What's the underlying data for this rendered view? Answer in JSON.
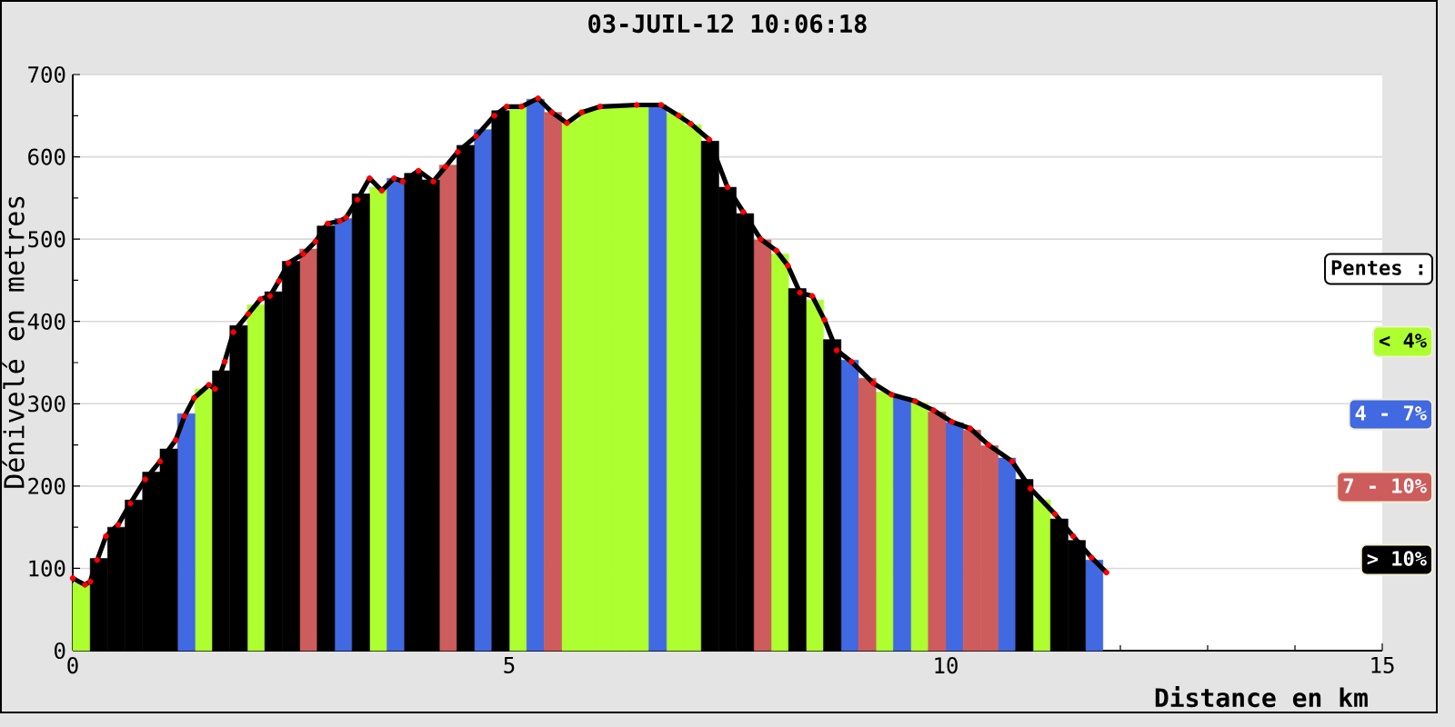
{
  "chart_data": {
    "type": "bar",
    "title": "03-JUIL-12 10:06:18",
    "xlabel": "Distance en km",
    "ylabel": "Dénivelé en metres",
    "legend_title": "Pentes :",
    "series": [
      {
        "name": "< 4%",
        "color": "#adff2f",
        "x": [
          0.1,
          1.5,
          2.1,
          3.5,
          5.1,
          5.7,
          5.9,
          6.1,
          6.3,
          6.5,
          6.9,
          7.1,
          8.1,
          8.5,
          9.3,
          9.7,
          11.1
        ],
        "values": [
          82,
          318,
          420,
          563,
          661,
          644,
          657,
          661,
          662,
          663,
          653,
          639,
          482,
          426,
          314,
          301,
          183
        ]
      },
      {
        "name": "4 - 7%",
        "color": "#4169e1",
        "x": [
          1.3,
          3.1,
          3.7,
          4.7,
          5.3,
          6.7,
          8.9,
          9.5,
          10.1,
          10.7,
          11.7
        ],
        "values": [
          288,
          525,
          574,
          633,
          670,
          663,
          353,
          308,
          277,
          234,
          110
        ]
      },
      {
        "name": "7 - 10%",
        "color": "#cd5c5c",
        "x": [
          2.7,
          4.3,
          5.5,
          7.9,
          9.1,
          9.9,
          10.3,
          10.5
        ],
        "values": [
          488,
          590,
          654,
          499,
          331,
          290,
          268,
          249
        ]
      },
      {
        "name": "> 10%",
        "color": "#000000",
        "x": [
          0.3,
          0.5,
          0.7,
          0.9,
          1.1,
          1.7,
          1.9,
          2.3,
          2.5,
          2.9,
          3.3,
          3.9,
          4.1,
          4.5,
          4.9,
          7.3,
          7.5,
          7.7,
          8.3,
          8.7,
          10.9,
          11.3,
          11.5
        ],
        "values": [
          112,
          150,
          183,
          217,
          245,
          340,
          395,
          436,
          473,
          516,
          555,
          580,
          572,
          614,
          656,
          619,
          563,
          531,
          440,
          378,
          208,
          160,
          134
        ]
      },
      {
        "type": "line",
        "color": "#ff0000",
        "x": [
          0,
          0.14,
          0.2,
          0.28,
          0.38,
          0.52,
          0.66,
          0.83,
          1.0,
          1.18,
          1.28,
          1.39,
          1.56,
          1.63,
          1.74,
          1.84,
          2.01,
          2.15,
          2.26,
          2.36,
          2.47,
          2.64,
          2.78,
          2.92,
          3.06,
          3.13,
          3.26,
          3.4,
          3.54,
          3.68,
          3.78,
          3.96,
          4.13,
          4.27,
          4.41,
          4.62,
          4.83,
          4.97,
          5.14,
          5.33,
          5.49,
          5.66,
          5.83,
          6.04,
          6.46,
          6.74,
          6.94,
          7.08,
          7.29,
          7.5,
          7.68,
          7.88,
          8.06,
          8.19,
          8.33,
          8.47,
          8.61,
          8.75,
          8.92,
          9.17,
          9.38,
          9.65,
          9.86,
          10.07,
          10.28,
          10.49,
          10.76,
          10.97,
          11.25,
          11.46,
          11.67,
          11.84
        ],
        "values": [
          88,
          80,
          84,
          110,
          139,
          153,
          179,
          208,
          230,
          256,
          285,
          307,
          323,
          318,
          351,
          387,
          409,
          427,
          431,
          449,
          471,
          482,
          497,
          519,
          522,
          526,
          548,
          574,
          559,
          574,
          570,
          583,
          570,
          588,
          606,
          625,
          650,
          661,
          661,
          671,
          654,
          641,
          654,
          661,
          663,
          663,
          650,
          640,
          621,
          563,
          533,
          500,
          486,
          468,
          435,
          431,
          402,
          365,
          351,
          325,
          311,
          303,
          292,
          278,
          270,
          250,
          230,
          197,
          166,
          139,
          113,
          95
        ]
      }
    ],
    "xlim": [
      0,
      15
    ],
    "ylim": [
      0,
      700
    ],
    "xticks": [
      0,
      {
        "value": 1,
        "label": null
      },
      {
        "value": 2,
        "label": null
      },
      {
        "value": 3,
        "label": null
      },
      {
        "value": 4,
        "label": null
      },
      5,
      {
        "value": 6,
        "label": null
      },
      {
        "value": 7,
        "label": null
      },
      {
        "value": 8,
        "label": null
      },
      {
        "value": 9,
        "label": null
      },
      10,
      {
        "value": 11,
        "label": null
      },
      {
        "value": 12,
        "label": null
      },
      {
        "value": 13,
        "label": null
      },
      {
        "value": 14,
        "label": null
      },
      15
    ],
    "yticks": [
      0,
      {
        "value": 50,
        "label": null
      },
      100,
      {
        "value": 150,
        "label": null
      },
      200,
      {
        "value": 250,
        "label": null
      },
      300,
      {
        "value": 350,
        "label": null
      },
      400,
      {
        "value": 450,
        "label": null
      },
      500,
      {
        "value": 550,
        "label": null
      },
      600,
      {
        "value": 650,
        "label": null
      },
      700
    ],
    "grid": "y",
    "legend": "right",
    "marker": "circle"
  }
}
